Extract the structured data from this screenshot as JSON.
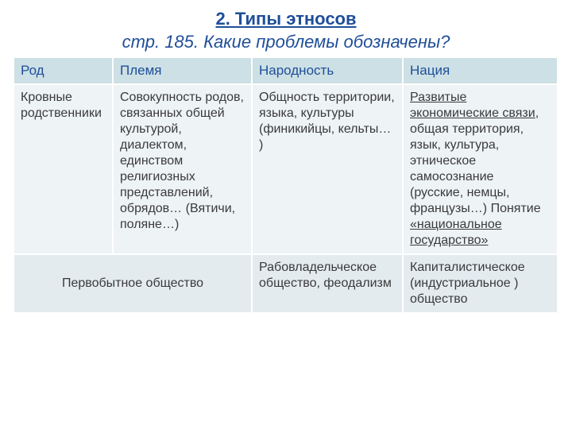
{
  "header": {
    "title": "2. Типы этносов",
    "subtitle": "стр. 185. Какие проблемы обозначены?"
  },
  "table": {
    "columns": [
      "Род",
      "Племя",
      "Народность",
      "Нация"
    ],
    "row1": {
      "c1": "Кровные родственники",
      "c2": "Совокупность родов, связанных общей культурой, диалектом, единством религиозных представлений, обрядов… (Вятичи, поляне…)",
      "c3": "Общность территории, языка, культуры (финикийцы, кельты… )",
      "c4_part1": "Развитые экономические связи",
      "c4_part2": ", общая территория, язык, культура, этническое самосознание (русские, немцы, французы…) Понятие ",
      "c4_part3": "«национальное государство»"
    },
    "row2": {
      "c12": "Первобытное общество",
      "c3": "Рабовладельческое общество, феодализм",
      "c4": "Капиталистическое (индустриальное ) общество"
    }
  },
  "colors": {
    "title_color": "#1f4e99",
    "header_bg": "#cce0e5",
    "cell_bg": "#eef3f6",
    "lastrow_bg": "#e3ebef",
    "text": "#3a3a3a",
    "border": "#ffffff"
  }
}
